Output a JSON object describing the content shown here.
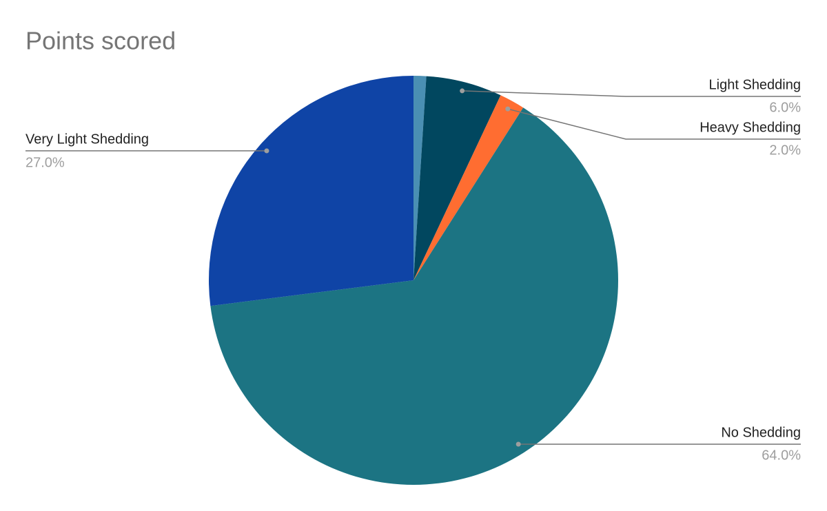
{
  "chart_data": {
    "type": "pie",
    "title": "Points scored",
    "categories": [
      null,
      "Light Shedding",
      "Heavy Shedding",
      "No Shedding",
      "Very Light Shedding"
    ],
    "values": [
      1,
      6,
      2,
      64,
      27
    ],
    "value_labels": [
      null,
      "6.0%",
      "2.0%",
      "64.0%",
      "27.0%"
    ],
    "colors": [
      "#4a8fb3",
      "#01475f",
      "#ff6d31",
      "#1c7483",
      "#0f44a6"
    ]
  }
}
